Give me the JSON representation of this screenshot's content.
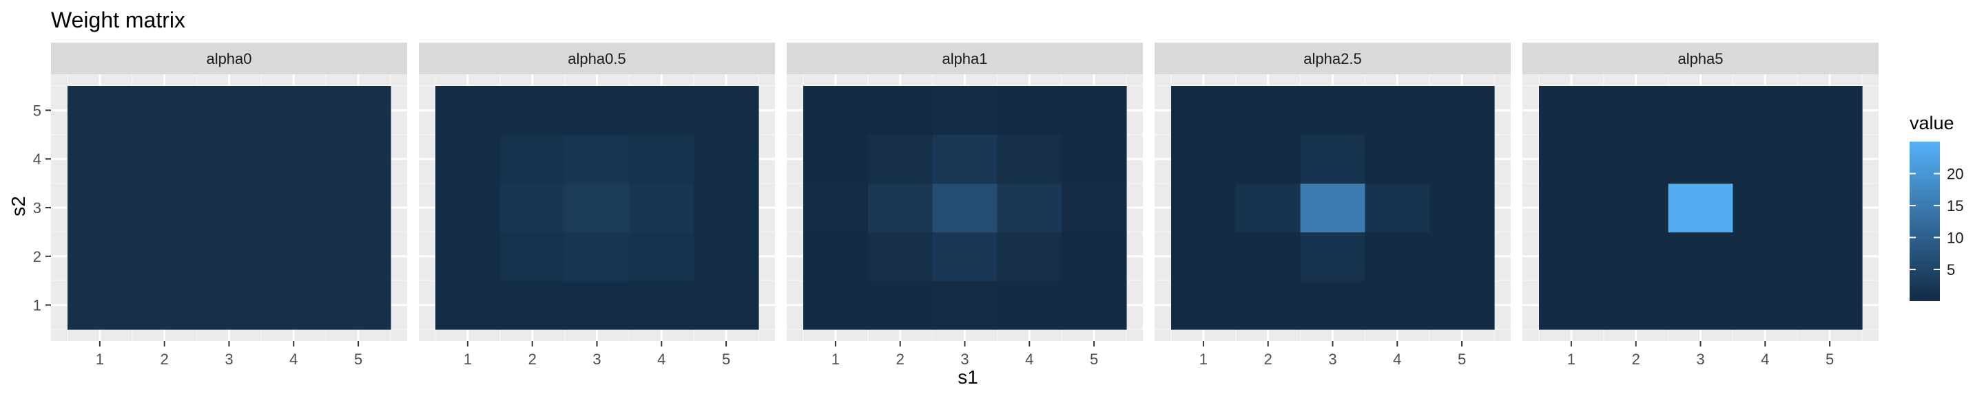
{
  "chart_data": {
    "type": "heatmap",
    "title": "Weight matrix",
    "xlabel": "s1",
    "ylabel": "s2",
    "x": [
      1,
      2,
      3,
      4,
      5
    ],
    "y": [
      1,
      2,
      3,
      4,
      5
    ],
    "x_tick_labels": [
      "1",
      "2",
      "3",
      "4",
      "5"
    ],
    "y_tick_labels": [
      "1",
      "2",
      "3",
      "4",
      "5"
    ],
    "legend": {
      "title": "value",
      "ticks": [
        5,
        10,
        15,
        20
      ],
      "tick_labels": [
        "5",
        "10",
        "15",
        "20"
      ],
      "range": [
        0.04,
        25
      ],
      "low_color": "#132B43",
      "high_color": "#56B1F7",
      "position": "right"
    },
    "panels": [
      {
        "label": "alpha0",
        "z": [
          [
            1,
            1,
            1,
            1,
            1
          ],
          [
            1,
            1,
            1,
            1,
            1
          ],
          [
            1,
            1,
            1,
            1,
            1
          ],
          [
            1,
            1,
            1,
            1,
            1
          ],
          [
            1,
            1,
            1,
            1,
            1
          ]
        ]
      },
      {
        "label": "alpha0.5",
        "z": [
          [
            0.3,
            0.4,
            0.5,
            0.4,
            0.3
          ],
          [
            0.4,
            1.4,
            2.0,
            1.4,
            0.4
          ],
          [
            0.5,
            2.0,
            3.0,
            2.0,
            0.5
          ],
          [
            0.4,
            1.4,
            2.0,
            1.4,
            0.4
          ],
          [
            0.3,
            0.4,
            0.5,
            0.4,
            0.3
          ]
        ]
      },
      {
        "label": "alpha1",
        "z": [
          [
            0.1,
            0.2,
            0.3,
            0.2,
            0.1
          ],
          [
            0.2,
            1.0,
            2.5,
            1.0,
            0.2
          ],
          [
            0.3,
            2.5,
            6.4,
            2.5,
            0.3
          ],
          [
            0.2,
            1.0,
            2.5,
            1.0,
            0.2
          ],
          [
            0.1,
            0.2,
            0.3,
            0.2,
            0.1
          ]
        ]
      },
      {
        "label": "alpha2.5",
        "z": [
          [
            0.05,
            0.05,
            0.1,
            0.05,
            0.05
          ],
          [
            0.05,
            0.2,
            1.5,
            0.2,
            0.05
          ],
          [
            0.1,
            1.5,
            15.0,
            1.5,
            0.1
          ],
          [
            0.05,
            0.2,
            1.5,
            0.2,
            0.05
          ],
          [
            0.05,
            0.05,
            0.1,
            0.05,
            0.05
          ]
        ]
      },
      {
        "label": "alpha5",
        "z": [
          [
            0.04,
            0.04,
            0.04,
            0.04,
            0.04
          ],
          [
            0.04,
            0.04,
            0.04,
            0.04,
            0.04
          ],
          [
            0.04,
            0.04,
            24.0,
            0.04,
            0.04
          ],
          [
            0.04,
            0.04,
            0.04,
            0.04,
            0.04
          ],
          [
            0.04,
            0.04,
            0.04,
            0.04,
            0.04
          ]
        ]
      }
    ],
    "grid": true
  }
}
